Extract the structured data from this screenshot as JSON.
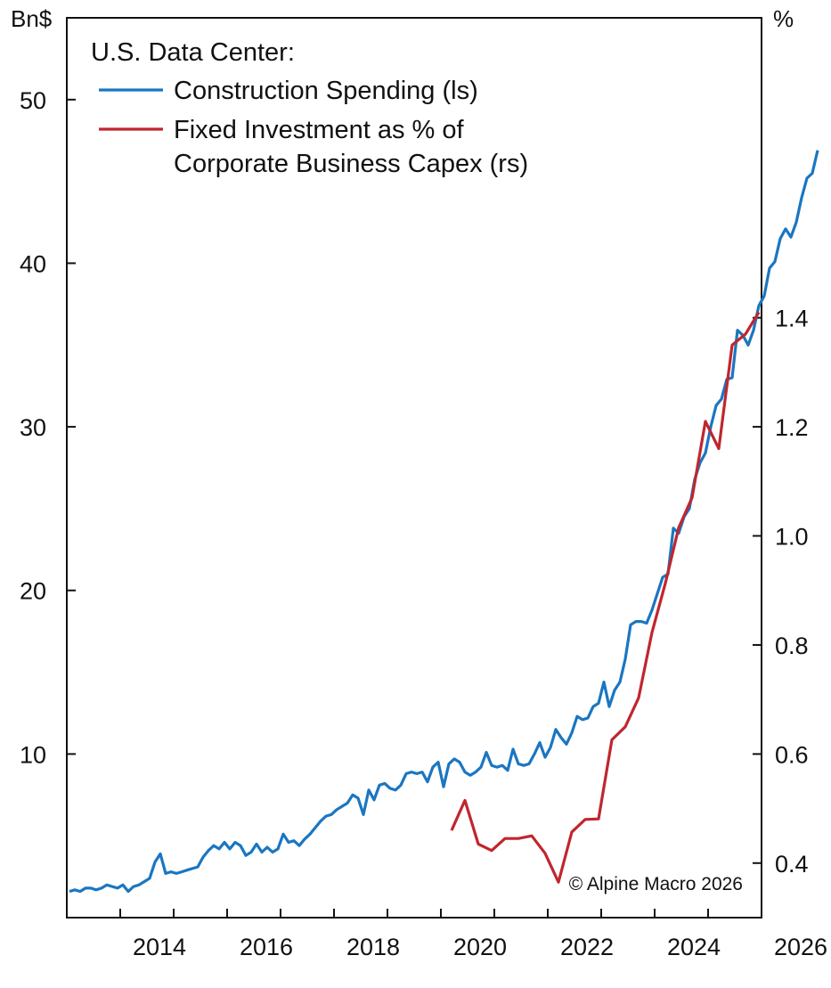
{
  "chart_data": {
    "type": "line",
    "title": "U.S. Data Center:",
    "left_axis": {
      "unit": "Bn$",
      "ylim": [
        0,
        55
      ],
      "ticks": [
        10,
        20,
        30,
        40,
        50
      ]
    },
    "right_axis": {
      "unit": "%",
      "ylim": [
        0.3,
        1.95
      ],
      "ticks": [
        "0.4",
        "0.6",
        "0.8",
        "1.0",
        "1.2",
        "1.4"
      ],
      "tick_values": [
        0.4,
        0.6,
        0.8,
        1.0,
        1.2,
        1.4
      ]
    },
    "x_axis": {
      "xlim": [
        2013.0,
        2026.0
      ],
      "ticks": [
        "2014",
        "2016",
        "2018",
        "2020",
        "2022",
        "2024",
        "2026"
      ],
      "tick_values": [
        2014,
        2016,
        2018,
        2020,
        2022,
        2024,
        2026
      ]
    },
    "legend_position": "top-left",
    "series": [
      {
        "name": "Construction Spending (ls)",
        "axis": "left",
        "color": "#1a76c2",
        "points": [
          [
            2013.05,
            1.6
          ],
          [
            2013.15,
            1.7
          ],
          [
            2013.25,
            1.6
          ],
          [
            2013.35,
            1.8
          ],
          [
            2013.45,
            1.8
          ],
          [
            2013.55,
            1.7
          ],
          [
            2013.65,
            1.8
          ],
          [
            2013.75,
            2.0
          ],
          [
            2013.85,
            1.9
          ],
          [
            2013.95,
            1.8
          ],
          [
            2014.05,
            2.0
          ],
          [
            2014.15,
            1.6
          ],
          [
            2014.25,
            1.9
          ],
          [
            2014.35,
            2.0
          ],
          [
            2014.45,
            2.2
          ],
          [
            2014.55,
            2.4
          ],
          [
            2014.65,
            3.4
          ],
          [
            2014.75,
            3.9
          ],
          [
            2014.85,
            2.7
          ],
          [
            2014.95,
            2.8
          ],
          [
            2015.05,
            2.7
          ],
          [
            2015.15,
            2.8
          ],
          [
            2015.25,
            2.9
          ],
          [
            2015.35,
            3.0
          ],
          [
            2015.45,
            3.1
          ],
          [
            2015.55,
            3.7
          ],
          [
            2015.65,
            4.1
          ],
          [
            2015.75,
            4.4
          ],
          [
            2015.85,
            4.2
          ],
          [
            2015.95,
            4.6
          ],
          [
            2016.05,
            4.2
          ],
          [
            2016.15,
            4.6
          ],
          [
            2016.25,
            4.4
          ],
          [
            2016.35,
            3.8
          ],
          [
            2016.45,
            4.0
          ],
          [
            2016.55,
            4.5
          ],
          [
            2016.65,
            4.0
          ],
          [
            2016.75,
            4.3
          ],
          [
            2016.85,
            4.0
          ],
          [
            2016.95,
            4.2
          ],
          [
            2017.05,
            5.1
          ],
          [
            2017.15,
            4.6
          ],
          [
            2017.25,
            4.7
          ],
          [
            2017.35,
            4.4
          ],
          [
            2017.45,
            4.8
          ],
          [
            2017.55,
            5.1
          ],
          [
            2017.65,
            5.5
          ],
          [
            2017.75,
            5.9
          ],
          [
            2017.85,
            6.2
          ],
          [
            2017.95,
            6.3
          ],
          [
            2018.05,
            6.6
          ],
          [
            2018.15,
            6.8
          ],
          [
            2018.25,
            7.0
          ],
          [
            2018.35,
            7.5
          ],
          [
            2018.45,
            7.3
          ],
          [
            2018.55,
            6.3
          ],
          [
            2018.65,
            7.8
          ],
          [
            2018.75,
            7.2
          ],
          [
            2018.85,
            8.1
          ],
          [
            2018.95,
            8.2
          ],
          [
            2019.05,
            7.9
          ],
          [
            2019.15,
            7.8
          ],
          [
            2019.25,
            8.1
          ],
          [
            2019.35,
            8.8
          ],
          [
            2019.45,
            8.9
          ],
          [
            2019.55,
            8.8
          ],
          [
            2019.65,
            8.9
          ],
          [
            2019.75,
            8.3
          ],
          [
            2019.85,
            9.2
          ],
          [
            2019.95,
            9.5
          ],
          [
            2020.05,
            8.0
          ],
          [
            2020.15,
            9.4
          ],
          [
            2020.25,
            9.7
          ],
          [
            2020.35,
            9.5
          ],
          [
            2020.45,
            8.9
          ],
          [
            2020.55,
            8.7
          ],
          [
            2020.65,
            8.9
          ],
          [
            2020.75,
            9.2
          ],
          [
            2020.85,
            10.1
          ],
          [
            2020.95,
            9.3
          ],
          [
            2021.05,
            9.2
          ],
          [
            2021.15,
            9.3
          ],
          [
            2021.25,
            9.0
          ],
          [
            2021.35,
            10.3
          ],
          [
            2021.45,
            9.4
          ],
          [
            2021.55,
            9.3
          ],
          [
            2021.65,
            9.4
          ],
          [
            2021.75,
            10.0
          ],
          [
            2021.85,
            10.7
          ],
          [
            2021.95,
            9.8
          ],
          [
            2022.05,
            10.4
          ],
          [
            2022.15,
            11.5
          ],
          [
            2022.25,
            11.0
          ],
          [
            2022.35,
            10.6
          ],
          [
            2022.45,
            11.3
          ],
          [
            2022.55,
            12.3
          ],
          [
            2022.65,
            12.1
          ],
          [
            2022.75,
            12.2
          ],
          [
            2022.85,
            12.9
          ],
          [
            2022.95,
            13.1
          ],
          [
            2023.05,
            14.4
          ],
          [
            2023.15,
            12.9
          ],
          [
            2023.25,
            13.9
          ],
          [
            2023.35,
            14.4
          ],
          [
            2023.45,
            15.8
          ],
          [
            2023.55,
            17.9
          ],
          [
            2023.65,
            18.1
          ],
          [
            2023.75,
            18.1
          ],
          [
            2023.85,
            18.0
          ],
          [
            2023.95,
            18.8
          ],
          [
            2024.05,
            19.8
          ],
          [
            2024.15,
            20.8
          ],
          [
            2024.25,
            21.0
          ],
          [
            2024.35,
            23.8
          ],
          [
            2024.45,
            23.5
          ],
          [
            2024.55,
            24.5
          ],
          [
            2024.65,
            25.0
          ],
          [
            2024.75,
            26.8
          ],
          [
            2024.85,
            27.8
          ],
          [
            2024.95,
            28.4
          ],
          [
            2025.05,
            30.0
          ],
          [
            2025.15,
            31.3
          ],
          [
            2025.25,
            31.7
          ],
          [
            2025.35,
            32.9
          ],
          [
            2025.45,
            33.0
          ],
          [
            2025.55,
            35.9
          ],
          [
            2025.65,
            35.6
          ],
          [
            2025.75,
            35.0
          ],
          [
            2025.85,
            35.9
          ],
          [
            2025.95,
            37.4
          ],
          [
            2026.05,
            38.0
          ],
          [
            2026.15,
            39.7
          ],
          [
            2026.25,
            40.1
          ],
          [
            2026.35,
            41.5
          ],
          [
            2026.45,
            42.1
          ],
          [
            2026.55,
            41.6
          ],
          [
            2026.65,
            42.5
          ],
          [
            2026.75,
            44.0
          ],
          [
            2026.85,
            45.2
          ],
          [
            2026.95,
            45.5
          ],
          [
            2027.05,
            46.9
          ]
        ]
      },
      {
        "name": "Fixed Investment as % of Corporate Business Capex (rs)",
        "axis": "right",
        "color": "#c0262e",
        "points": [
          [
            2020.2,
            0.46
          ],
          [
            2020.45,
            0.515
          ],
          [
            2020.7,
            0.435
          ],
          [
            2020.95,
            0.423
          ],
          [
            2021.2,
            0.445
          ],
          [
            2021.45,
            0.445
          ],
          [
            2021.7,
            0.45
          ],
          [
            2021.95,
            0.418
          ],
          [
            2022.2,
            0.365
          ],
          [
            2022.45,
            0.457
          ],
          [
            2022.7,
            0.48
          ],
          [
            2022.95,
            0.481
          ],
          [
            2023.2,
            0.626
          ],
          [
            2023.45,
            0.65
          ],
          [
            2023.7,
            0.703
          ],
          [
            2023.95,
            0.823
          ],
          [
            2024.2,
            0.913
          ],
          [
            2024.45,
            1.015
          ],
          [
            2024.7,
            1.07
          ],
          [
            2024.95,
            1.21
          ],
          [
            2025.2,
            1.16
          ],
          [
            2025.45,
            1.35
          ],
          [
            2025.7,
            1.37
          ],
          [
            2025.95,
            1.41
          ]
        ]
      }
    ],
    "legend": [
      "Construction Spending (ls)",
      "Fixed Investment as % of",
      "Corporate Business Capex (rs)"
    ],
    "annotation": "© Alpine Macro 2026"
  }
}
